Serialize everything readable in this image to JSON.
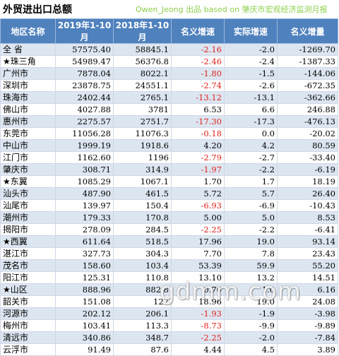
{
  "title": "外贸进出口总额",
  "source": "Owen_Jeong 出品 based on 肇庆市宏观经济监测月报",
  "headers": [
    "地区名称",
    "2019年1-10月",
    "2018年1-10月",
    "名义增速",
    "实际增速",
    "名义增量"
  ],
  "rows": [
    {
      "name": "全  省",
      "v2019": "57575.40",
      "v2018": "58845.1",
      "nominal_growth": "-2.16",
      "real_growth": "-2.0",
      "nominal_increase": "-1269.70",
      "nominal_negative": true
    },
    {
      "name": "★珠三角",
      "v2019": "54989.47",
      "v2018": "56376.8",
      "nominal_growth": "-2.46",
      "real_growth": "-2.4",
      "nominal_increase": "-1387.33",
      "nominal_negative": true
    },
    {
      "name": "广州市",
      "v2019": "7878.04",
      "v2018": "8022.1",
      "nominal_growth": "-1.80",
      "real_growth": "-1.5",
      "nominal_increase": "-144.06",
      "nominal_negative": true
    },
    {
      "name": "深圳市",
      "v2019": "23878.75",
      "v2018": "24551.1",
      "nominal_growth": "-2.74",
      "real_growth": "-2.6",
      "nominal_increase": "-672.35",
      "nominal_negative": true
    },
    {
      "name": "珠海市",
      "v2019": "2402.44",
      "v2018": "2765.1",
      "nominal_growth": "-13.12",
      "real_growth": "-13.1",
      "nominal_increase": "-362.66",
      "nominal_negative": true
    },
    {
      "name": "佛山市",
      "v2019": "4027.88",
      "v2018": "3781",
      "nominal_growth": "6.53",
      "real_growth": "6.6",
      "nominal_increase": "246.88",
      "nominal_negative": false
    },
    {
      "name": "惠州市",
      "v2019": "2275.57",
      "v2018": "2751.7",
      "nominal_growth": "-17.30",
      "real_growth": "-17.3",
      "nominal_increase": "-476.13",
      "nominal_negative": true
    },
    {
      "name": "东莞市",
      "v2019": "11056.28",
      "v2018": "11076.3",
      "nominal_growth": "-0.18",
      "real_growth": "0.0",
      "nominal_increase": "-20.02",
      "nominal_negative": true
    },
    {
      "name": "中山市",
      "v2019": "1999.19",
      "v2018": "1918.6",
      "nominal_growth": "4.20",
      "real_growth": "4.2",
      "nominal_increase": "80.59",
      "nominal_negative": false
    },
    {
      "name": "江门市",
      "v2019": "1162.60",
      "v2018": "1196",
      "nominal_growth": "-2.79",
      "real_growth": "-2.7",
      "nominal_increase": "-33.40",
      "nominal_negative": true
    },
    {
      "name": "肇庆市",
      "v2019": "308.71",
      "v2018": "314.9",
      "nominal_growth": "-1.97",
      "real_growth": "-2.2",
      "nominal_increase": "-6.19",
      "nominal_negative": true
    },
    {
      "name": "★东翼",
      "v2019": "1085.29",
      "v2018": "1067.1",
      "nominal_growth": "1.70",
      "real_growth": "1.7",
      "nominal_increase": "18.19",
      "nominal_negative": false
    },
    {
      "name": "汕头市",
      "v2019": "487.90",
      "v2018": "461.5",
      "nominal_growth": "5.72",
      "real_growth": "5.7",
      "nominal_increase": "26.40",
      "nominal_negative": false
    },
    {
      "name": "汕尾市",
      "v2019": "139.97",
      "v2018": "150.4",
      "nominal_growth": "-6.93",
      "real_growth": "-6.9",
      "nominal_increase": "-10.43",
      "nominal_negative": true
    },
    {
      "name": "潮州市",
      "v2019": "179.33",
      "v2018": "170.8",
      "nominal_growth": "5.00",
      "real_growth": "5.0",
      "nominal_increase": "8.53",
      "nominal_negative": false
    },
    {
      "name": "揭阳市",
      "v2019": "278.09",
      "v2018": "284.5",
      "nominal_growth": "-2.25",
      "real_growth": "-2.2",
      "nominal_increase": "-6.41",
      "nominal_negative": true
    },
    {
      "name": "★西翼",
      "v2019": "611.64",
      "v2018": "518.5",
      "nominal_growth": "17.96",
      "real_growth": "19.0",
      "nominal_increase": "93.14",
      "nominal_negative": false
    },
    {
      "name": "湛江市",
      "v2019": "327.73",
      "v2018": "304.3",
      "nominal_growth": "7.70",
      "real_growth": "7.8",
      "nominal_increase": "23.43",
      "nominal_negative": false
    },
    {
      "name": "茂名市",
      "v2019": "158.60",
      "v2018": "103.4",
      "nominal_growth": "53.39",
      "real_growth": "59.9",
      "nominal_increase": "55.20",
      "nominal_negative": false
    },
    {
      "name": "阳江市",
      "v2019": "125.31",
      "v2018": "110.8",
      "nominal_growth": "13.10",
      "real_growth": "13.2",
      "nominal_increase": "14.51",
      "nominal_negative": false
    },
    {
      "name": "★山区",
      "v2019": "888.96",
      "v2018": "882.8",
      "nominal_growth": "0.70",
      "real_growth": "1.0",
      "nominal_increase": "6.16",
      "nominal_negative": false
    },
    {
      "name": "韶关市",
      "v2019": "151.08",
      "v2018": "127",
      "nominal_growth": "18.96",
      "real_growth": "19.0",
      "nominal_increase": "24.08",
      "nominal_negative": false
    },
    {
      "name": "河源市",
      "v2019": "202.12",
      "v2018": "206.1",
      "nominal_growth": "-1.93",
      "real_growth": "-1.9",
      "nominal_increase": "-3.98",
      "nominal_negative": true
    },
    {
      "name": "梅州市",
      "v2019": "103.41",
      "v2018": "113.3",
      "nominal_growth": "-8.73",
      "real_growth": "-9.9",
      "nominal_increase": "-9.89",
      "nominal_negative": true
    },
    {
      "name": "清远市",
      "v2019": "340.86",
      "v2018": "348.7",
      "nominal_growth": "-2.25",
      "real_growth": "-2.0",
      "nominal_increase": "-7.84",
      "nominal_negative": true
    },
    {
      "name": "云浮市",
      "v2019": "91.49",
      "v2018": "87.6",
      "nominal_growth": "4.44",
      "real_growth": "4.5",
      "nominal_increase": "3.89",
      "nominal_negative": false
    }
  ],
  "watermark": "gdmm.com",
  "colors": {
    "header_bg": "#4f81bd",
    "stripe": "#dce6f1",
    "negative": "#e0201b",
    "source_text": "#8ccf4a"
  }
}
